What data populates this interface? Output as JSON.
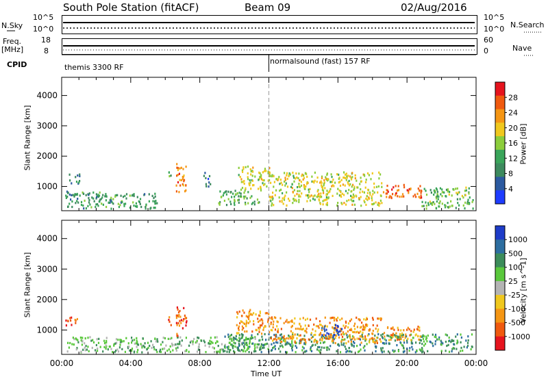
{
  "header": {
    "station": "South Pole Station (fitACF)",
    "beam": "Beam 09",
    "date": "02/Aug/2016"
  },
  "top_panels": {
    "nsky_label": "N.Sky",
    "nsky_ticks": [
      "10^5",
      "10^0"
    ],
    "nsearch_label": "N.Search",
    "nsearch_ticks": [
      "10^5",
      "10^0"
    ],
    "freq_label": "Freq.",
    "freq_unit": "[MHz]",
    "freq_ticks": [
      "18",
      "8"
    ],
    "nave_label": "Nave",
    "nave_ticks": [
      "60",
      "0"
    ],
    "cpid_label": "CPID",
    "cpid_segments": [
      {
        "label": "themis 3300 RF",
        "start_hour": 0,
        "end_hour": 12
      },
      {
        "label": "normalsound (fast) 157 RF",
        "start_hour": 12,
        "end_hour": 24
      }
    ]
  },
  "chart_data": [
    {
      "type": "heatmap",
      "quantity": "power",
      "ylabel": "Slant Range [km]",
      "xlabel": "Time UT",
      "xlim": [
        0,
        24
      ],
      "ylim": [
        200,
        4600
      ],
      "x_ticks": [
        "00:00",
        "04:00",
        "08:00",
        "12:00",
        "16:00",
        "20:00",
        "00:00"
      ],
      "y_ticks": [
        1000,
        2000,
        3000,
        4000
      ],
      "colorbar": {
        "label": "Power [dB]",
        "ticks": [
          4,
          8,
          12,
          16,
          20,
          24,
          28
        ],
        "range": [
          0,
          32
        ],
        "colors": [
          "#1e3cff",
          "#2c5aa0",
          "#3d8a5e",
          "#3aa55a",
          "#8ccd3c",
          "#f0c81e",
          "#f59614",
          "#f05a0f",
          "#e6141e"
        ]
      },
      "marker_hour": 12,
      "blobs": [
        {
          "t0": 0.4,
          "t1": 1.0,
          "r0": 1100,
          "r1": 1450,
          "level": 8
        },
        {
          "t0": 0.2,
          "t1": 2.5,
          "r0": 300,
          "r1": 900,
          "level": 10
        },
        {
          "t0": 2.5,
          "t1": 5.5,
          "r0": 300,
          "r1": 800,
          "level": 10
        },
        {
          "t0": 6.1,
          "t1": 6.3,
          "r0": 1150,
          "r1": 1500,
          "level": 13
        },
        {
          "t0": 6.6,
          "t1": 7.2,
          "r0": 800,
          "r1": 1800,
          "level": 26
        },
        {
          "t0": 8.2,
          "t1": 8.6,
          "r0": 1000,
          "r1": 1500,
          "level": 6
        },
        {
          "t0": 9.0,
          "t1": 11.5,
          "r0": 400,
          "r1": 900,
          "level": 12
        },
        {
          "t0": 10.2,
          "t1": 12.0,
          "r0": 900,
          "r1": 1700,
          "level": 18
        },
        {
          "t0": 12.0,
          "t1": 18.5,
          "r0": 400,
          "r1": 1500,
          "level": 18
        },
        {
          "t0": 18.6,
          "t1": 20.8,
          "r0": 650,
          "r1": 1100,
          "level": 27
        },
        {
          "t0": 20.8,
          "t1": 23.8,
          "r0": 300,
          "r1": 1000,
          "level": 14
        }
      ]
    },
    {
      "type": "heatmap",
      "quantity": "velocity",
      "ylabel": "Slant Range [km]",
      "xlabel": "Time UT",
      "xlim": [
        0,
        24
      ],
      "ylim": [
        200,
        4600
      ],
      "x_ticks": [
        "00:00",
        "04:00",
        "08:00",
        "12:00",
        "16:00",
        "20:00",
        "00:00"
      ],
      "y_ticks": [
        1000,
        2000,
        3000,
        4000
      ],
      "colorbar": {
        "label": "Velocity [m s^-1]",
        "ticks": [
          "1000",
          "500",
          "100",
          "25",
          "-25",
          "-100",
          "-500",
          "-1000"
        ],
        "colors": [
          "#1e3cc8",
          "#2d6ea0",
          "#3c8c5a",
          "#5ac83c",
          "#b4b4b4",
          "#f0c81e",
          "#f59614",
          "#f05a0f",
          "#e6141e"
        ]
      },
      "marker_hour": 12,
      "blobs": [
        {
          "t0": 0.2,
          "t1": 1.0,
          "r0": 1150,
          "r1": 1450,
          "level": 7
        },
        {
          "t0": 0.3,
          "t1": 11.5,
          "r0": 300,
          "r1": 800,
          "level": 3
        },
        {
          "t0": 6.1,
          "t1": 6.3,
          "r0": 1150,
          "r1": 1500,
          "level": 7
        },
        {
          "t0": 6.6,
          "t1": 7.2,
          "r0": 800,
          "r1": 1800,
          "level": 7
        },
        {
          "t0": 9.4,
          "t1": 23.8,
          "r0": 300,
          "r1": 900,
          "level": 2
        },
        {
          "t0": 10.0,
          "t1": 12.0,
          "r0": 900,
          "r1": 1700,
          "level": 6
        },
        {
          "t0": 12.0,
          "t1": 18.5,
          "r0": 600,
          "r1": 1450,
          "level": 6
        },
        {
          "t0": 15.0,
          "t1": 16.2,
          "r0": 800,
          "r1": 1200,
          "level": 0
        },
        {
          "t0": 18.6,
          "t1": 20.8,
          "r0": 700,
          "r1": 1150,
          "level": 6
        }
      ]
    }
  ]
}
